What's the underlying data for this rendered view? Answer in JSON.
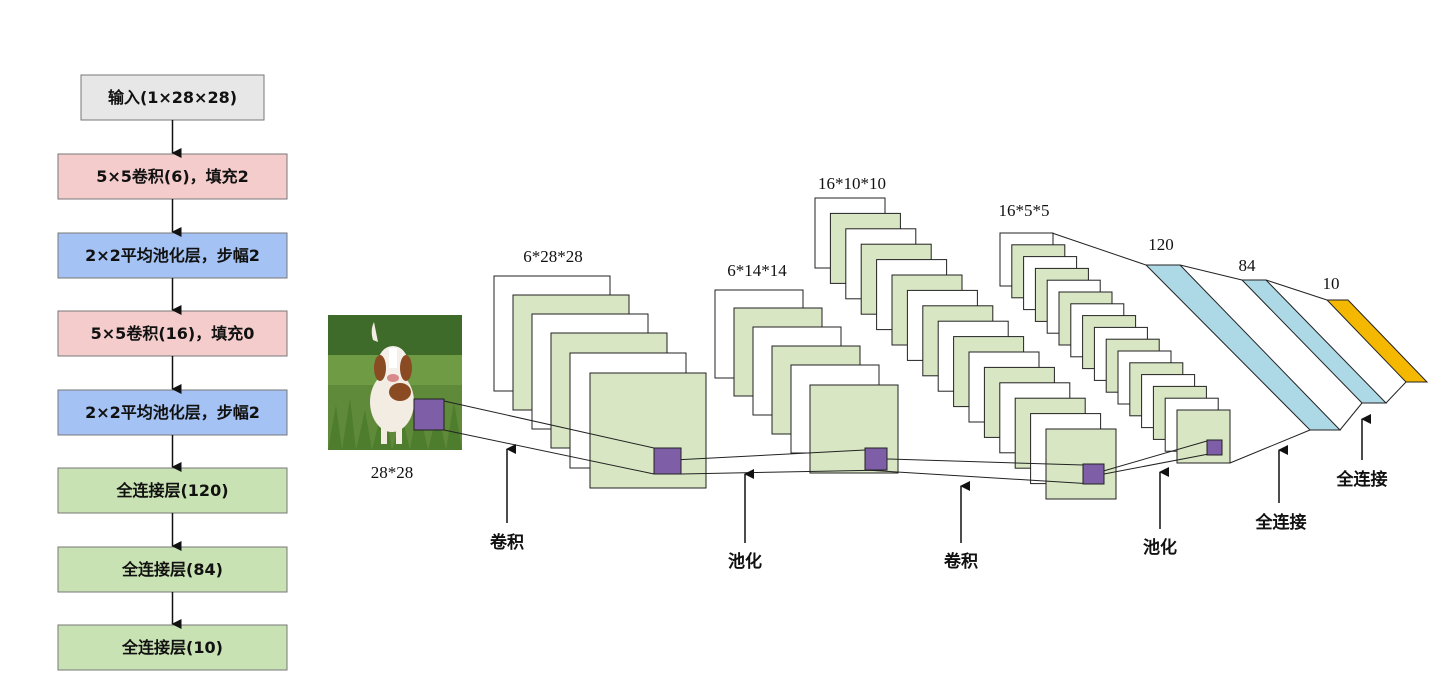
{
  "colors": {
    "input_fill": "#e7e7e7",
    "conv_fill": "#f4cccc",
    "pool_fill": "#a4c2f4",
    "fc_fill": "#c9e2b3",
    "map_fill": "#d8e6c4",
    "kernel_fill": "#7e5ea6",
    "fc120_fill": "#add8e6",
    "fc10_fill": "#f5b800"
  },
  "flowchart": {
    "steps": [
      {
        "label": "输入(1×28×28)",
        "kind": "input"
      },
      {
        "label": "5×5卷积(6)，填充2",
        "kind": "conv"
      },
      {
        "label": "2×2平均池化层，步幅2",
        "kind": "pool"
      },
      {
        "label": "5×5卷积(16)，填充0",
        "kind": "conv"
      },
      {
        "label": "2×2平均池化层，步幅2",
        "kind": "pool"
      },
      {
        "label": "全连接层(120)",
        "kind": "fc"
      },
      {
        "label": "全连接层(84)",
        "kind": "fc"
      },
      {
        "label": "全连接层(10)",
        "kind": "fc"
      }
    ]
  },
  "network": {
    "input": {
      "label": "28*28",
      "image": "dog-photo"
    },
    "conv1": {
      "label": "6*28*28",
      "maps": 6
    },
    "pool1": {
      "label": "6*14*14",
      "maps": 6
    },
    "conv2": {
      "label": "16*10*10",
      "maps": 16
    },
    "pool2": {
      "label": "16*5*5",
      "maps": 16
    },
    "fc1": {
      "label": "120"
    },
    "fc2": {
      "label": "84"
    },
    "fc3": {
      "label": "10"
    },
    "operations": [
      "卷积",
      "池化",
      "卷积",
      "池化",
      "全连接",
      "全连接"
    ]
  }
}
